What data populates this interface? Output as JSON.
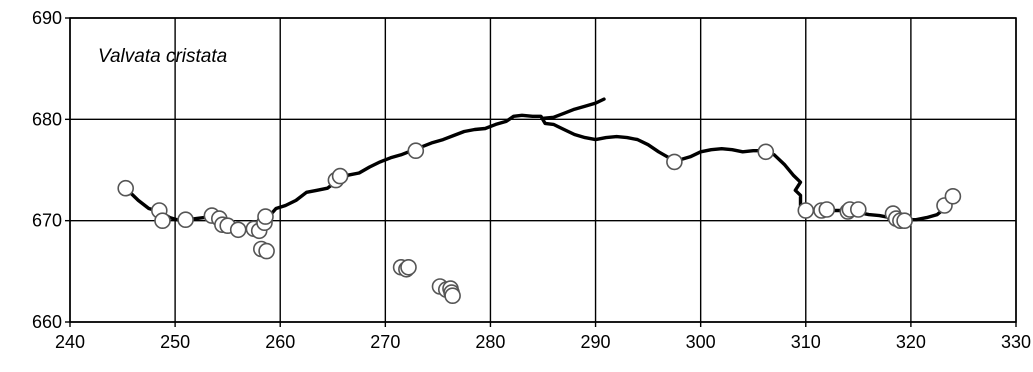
{
  "chart_data": {
    "type": "scatter",
    "title": "",
    "xlabel": "",
    "ylabel": "",
    "xlim": [
      240,
      330
    ],
    "ylim": [
      660,
      690
    ],
    "xticks": [
      240,
      250,
      260,
      270,
      280,
      290,
      300,
      310,
      320,
      330
    ],
    "yticks": [
      660,
      670,
      680,
      690
    ],
    "grid": true,
    "annotation": "Valvata cristata",
    "series": [
      {
        "kind": "line",
        "points": [
          [
            245.3,
            673.2
          ],
          [
            246.5,
            672.0
          ],
          [
            247.5,
            671.2
          ],
          [
            248.5,
            670.9
          ],
          [
            249.5,
            670.3
          ],
          [
            250.5,
            670.0
          ],
          [
            252.0,
            670.2
          ],
          [
            253.5,
            670.4
          ],
          [
            254.5,
            669.8
          ],
          [
            255.5,
            669.3
          ],
          [
            256.5,
            669.0
          ],
          [
            257.5,
            669.2
          ],
          [
            258.5,
            669.8
          ],
          [
            259.0,
            670.5
          ],
          [
            259.6,
            671.2
          ],
          [
            260.5,
            671.5
          ],
          [
            261.5,
            672.0
          ],
          [
            262.5,
            672.8
          ],
          [
            263.5,
            673.0
          ],
          [
            264.5,
            673.2
          ],
          [
            265.5,
            674.0
          ],
          [
            266.5,
            674.5
          ],
          [
            267.5,
            674.7
          ],
          [
            268.5,
            675.3
          ],
          [
            269.5,
            675.8
          ],
          [
            270.5,
            676.2
          ],
          [
            271.5,
            676.5
          ],
          [
            272.5,
            676.9
          ],
          [
            273.5,
            677.3
          ],
          [
            274.5,
            677.7
          ],
          [
            275.5,
            678.0
          ],
          [
            276.5,
            678.4
          ],
          [
            277.5,
            678.8
          ],
          [
            278.5,
            679.0
          ],
          [
            279.5,
            679.1
          ],
          [
            280.5,
            679.5
          ],
          [
            281.5,
            679.8
          ],
          [
            282.2,
            680.3
          ],
          [
            283.0,
            680.4
          ],
          [
            284.0,
            680.3
          ],
          [
            284.8,
            680.3
          ],
          [
            285.2,
            679.6
          ],
          [
            286.0,
            679.5
          ],
          [
            287.0,
            679.0
          ],
          [
            288.0,
            678.5
          ],
          [
            289.0,
            678.2
          ],
          [
            290.0,
            678.0
          ],
          [
            291.0,
            678.2
          ],
          [
            292.0,
            678.3
          ],
          [
            293.0,
            678.2
          ],
          [
            294.0,
            678.0
          ],
          [
            295.0,
            677.5
          ],
          [
            296.0,
            676.8
          ],
          [
            297.0,
            676.2
          ],
          [
            298.0,
            676.0
          ],
          [
            299.0,
            676.3
          ],
          [
            300.0,
            676.8
          ],
          [
            301.0,
            677.0
          ],
          [
            302.0,
            677.1
          ],
          [
            303.0,
            677.0
          ],
          [
            304.0,
            676.8
          ],
          [
            305.0,
            676.9
          ],
          [
            306.0,
            676.9
          ],
          [
            307.0,
            676.5
          ],
          [
            308.0,
            675.5
          ],
          [
            308.8,
            674.5
          ],
          [
            309.5,
            673.8
          ],
          [
            309.0,
            673.0
          ],
          [
            309.5,
            672.5
          ],
          [
            309.5,
            671.5
          ],
          [
            310.5,
            671.0
          ],
          [
            312.0,
            671.0
          ],
          [
            313.5,
            671.0
          ],
          [
            315.0,
            670.8
          ],
          [
            316.0,
            670.6
          ],
          [
            317.0,
            670.5
          ],
          [
            318.0,
            670.3
          ],
          [
            319.5,
            670.1
          ],
          [
            320.5,
            670.1
          ],
          [
            321.5,
            670.3
          ],
          [
            322.5,
            670.6
          ],
          [
            323.2,
            671.2
          ],
          [
            323.8,
            672.2
          ],
          [
            324.0,
            672.6
          ]
        ]
      },
      {
        "kind": "line",
        "points": [
          [
            285.0,
            680.1
          ],
          [
            286.0,
            680.2
          ],
          [
            287.0,
            680.6
          ],
          [
            288.0,
            681.0
          ],
          [
            289.0,
            681.3
          ],
          [
            290.0,
            681.6
          ],
          [
            290.8,
            682.0
          ]
        ]
      },
      {
        "kind": "scatter",
        "marker": "open-circle",
        "points": [
          [
            245.3,
            673.2
          ],
          [
            248.5,
            671.0
          ],
          [
            248.8,
            670.0
          ],
          [
            251.0,
            670.1
          ],
          [
            253.5,
            670.5
          ],
          [
            254.2,
            670.2
          ],
          [
            254.5,
            669.6
          ],
          [
            255.0,
            669.5
          ],
          [
            256.0,
            669.1
          ],
          [
            257.5,
            669.2
          ],
          [
            258.0,
            669.0
          ],
          [
            258.5,
            669.8
          ],
          [
            258.6,
            670.4
          ],
          [
            258.2,
            667.2
          ],
          [
            258.7,
            667.0
          ],
          [
            265.3,
            674.0
          ],
          [
            265.7,
            674.4
          ],
          [
            272.9,
            676.9
          ],
          [
            271.5,
            665.4
          ],
          [
            272.0,
            665.2
          ],
          [
            272.2,
            665.4
          ],
          [
            275.2,
            663.5
          ],
          [
            275.8,
            663.2
          ],
          [
            276.2,
            663.3
          ],
          [
            276.3,
            662.9
          ],
          [
            276.4,
            662.6
          ],
          [
            297.5,
            675.8
          ],
          [
            306.2,
            676.8
          ],
          [
            310.0,
            671.0
          ],
          [
            311.5,
            671.0
          ],
          [
            312.0,
            671.1
          ],
          [
            314.0,
            670.9
          ],
          [
            314.2,
            671.1
          ],
          [
            315.0,
            671.1
          ],
          [
            318.3,
            670.7
          ],
          [
            318.6,
            670.2
          ],
          [
            319.0,
            670.0
          ],
          [
            319.4,
            670.0
          ],
          [
            323.2,
            671.5
          ],
          [
            324.0,
            672.4
          ]
        ]
      }
    ]
  }
}
